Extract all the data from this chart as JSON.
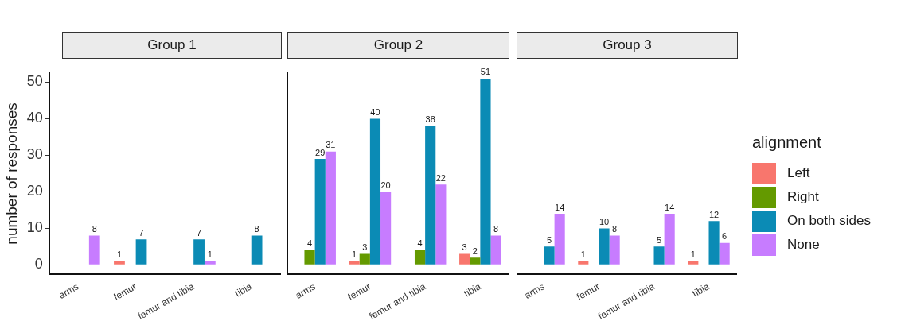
{
  "chart_data": [
    {
      "type": "bar",
      "title": "Group 1",
      "ylabel": "number of responses",
      "categories": [
        "arms",
        "femur",
        "femur and tibia",
        "tibia"
      ],
      "ylim": [
        -2.5,
        52.5
      ],
      "yticks": [
        0,
        10,
        20,
        30,
        40,
        50
      ],
      "data_labels": true,
      "grid": false,
      "legend": false,
      "series": [
        {
          "color": "#f8766d",
          "values": [
            null,
            1,
            null,
            null
          ]
        },
        {
          "color": "#649a00",
          "values": [
            null,
            null,
            null,
            null
          ]
        },
        {
          "color": "#0b8bb5",
          "values": [
            null,
            7,
            7,
            8
          ]
        },
        {
          "color": "#c77cff",
          "values": [
            8,
            null,
            1,
            null
          ]
        }
      ]
    },
    {
      "type": "bar",
      "title": "Group 2",
      "categories": [
        "arms",
        "femur",
        "femur and tibia",
        "tibia"
      ],
      "ylim": [
        -2.5,
        52.5
      ],
      "yticks": [
        0,
        10,
        20,
        30,
        40,
        50
      ],
      "tick_labels": "x",
      "data_labels": true,
      "grid": false,
      "legend": false,
      "series": [
        {
          "color": "#f8766d",
          "values": [
            null,
            1,
            null,
            3
          ]
        },
        {
          "color": "#649a00",
          "values": [
            4,
            3,
            4,
            2
          ]
        },
        {
          "color": "#0b8bb5",
          "values": [
            29,
            40,
            38,
            51
          ]
        },
        {
          "color": "#c77cff",
          "values": [
            31,
            20,
            22,
            8
          ]
        }
      ]
    },
    {
      "type": "bar",
      "title": "Group 3",
      "categories": [
        "arms",
        "femur",
        "femur and tibia",
        "tibia"
      ],
      "ylim": [
        -2.5,
        52.5
      ],
      "yticks": [
        0,
        10,
        20,
        30,
        40,
        50
      ],
      "tick_labels": "x",
      "data_labels": true,
      "grid": false,
      "legend": "right",
      "legend_title": "alignment",
      "series": [
        {
          "name": "Left",
          "color": "#f8766d",
          "values": [
            null,
            1,
            null,
            1
          ]
        },
        {
          "name": "Right",
          "color": "#649a00",
          "values": [
            null,
            null,
            null,
            null
          ]
        },
        {
          "name": "On both sides",
          "color": "#0b8bb5",
          "values": [
            5,
            10,
            5,
            12
          ]
        },
        {
          "name": "None",
          "color": "#c77cff",
          "values": [
            14,
            8,
            14,
            6
          ]
        }
      ]
    }
  ]
}
